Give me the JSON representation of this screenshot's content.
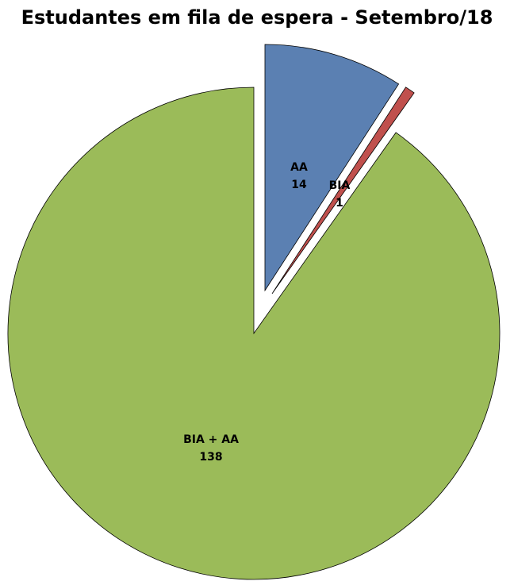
{
  "chart_data": {
    "type": "pie",
    "title": "Estudantes em fila de espera - Setembro/18",
    "slices": [
      {
        "label": "AA",
        "value": 14,
        "color": "#5b80b2",
        "exploded": true
      },
      {
        "label": "BIA",
        "value": 1,
        "color": "#c0504d",
        "exploded": true
      },
      {
        "label": "BIA + AA",
        "value": 138,
        "color": "#9bbb59",
        "exploded": false
      }
    ],
    "start_angle": "12 o'clock",
    "direction": "clockwise",
    "data_labels": "label and value"
  }
}
